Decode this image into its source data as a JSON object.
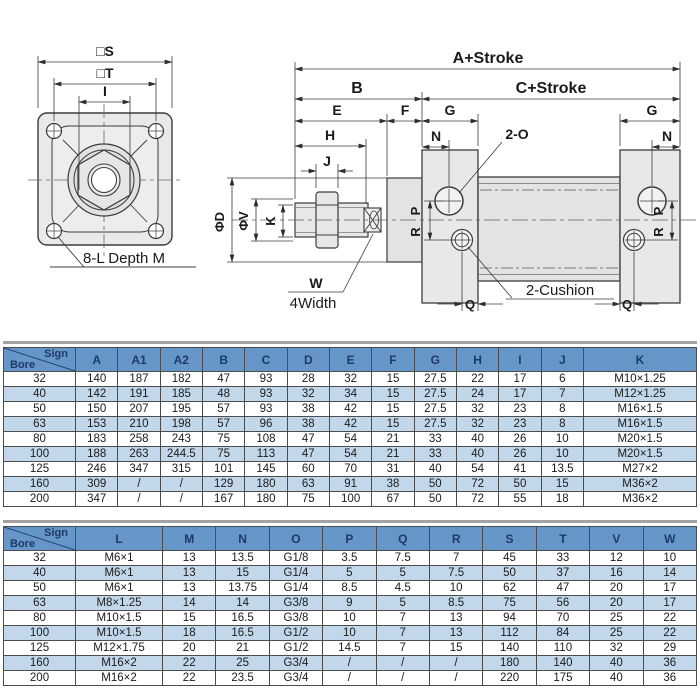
{
  "drawing": {
    "flange": {
      "dim_s": "□S",
      "dim_t": "□T",
      "dim_i": "I",
      "bolt_label": "8-L Depth M"
    },
    "cylinder": {
      "dim_a_stroke": "A+Stroke",
      "dim_b": "B",
      "dim_c_stroke": "C+Stroke",
      "dim_e": "E",
      "dim_f": "F",
      "dim_g_left": "G",
      "dim_g_right": "G",
      "dim_h": "H",
      "dim_n_left": "N",
      "dim_n_right": "N",
      "dim_j": "J",
      "port_label": "2-O",
      "dim_phi_d": "ΦD",
      "dim_phi_v": "ΦV",
      "dim_k": "K",
      "dim_p_left": "P",
      "dim_r_left": "R",
      "dim_p_right": "P",
      "dim_r_right": "R",
      "dim_w": "W",
      "width_label": "4Width",
      "dim_q_left": "Q",
      "dim_q_right": "Q",
      "cushion_label": "2-Cushion"
    }
  },
  "colors": {
    "table_header_bg": "#6695c8",
    "table_header_text": "#1f3a68",
    "table_row_alt": "#c2d8ea",
    "table_grid": "#4c4c4c",
    "metal_fill": "#e7e7e7",
    "line": "#3c3c3c"
  },
  "table1": {
    "corner": {
      "top": "Sign",
      "bottom": "Bore"
    },
    "columns": [
      "A",
      "A1",
      "A2",
      "B",
      "C",
      "D",
      "E",
      "F",
      "G",
      "H",
      "I",
      "J",
      "K"
    ],
    "rows": [
      [
        "32",
        "140",
        "187",
        "182",
        "47",
        "93",
        "28",
        "32",
        "15",
        "27.5",
        "22",
        "17",
        "6",
        "M10×1.25"
      ],
      [
        "40",
        "142",
        "191",
        "185",
        "48",
        "93",
        "32",
        "34",
        "15",
        "27.5",
        "24",
        "17",
        "7",
        "M12×1.25"
      ],
      [
        "50",
        "150",
        "207",
        "195",
        "57",
        "93",
        "38",
        "42",
        "15",
        "27.5",
        "32",
        "23",
        "8",
        "M16×1.5"
      ],
      [
        "63",
        "153",
        "210",
        "198",
        "57",
        "96",
        "38",
        "42",
        "15",
        "27.5",
        "32",
        "23",
        "8",
        "M16×1.5"
      ],
      [
        "80",
        "183",
        "258",
        "243",
        "75",
        "108",
        "47",
        "54",
        "21",
        "33",
        "40",
        "26",
        "10",
        "M20×1.5"
      ],
      [
        "100",
        "188",
        "263",
        "244.5",
        "75",
        "113",
        "47",
        "54",
        "21",
        "33",
        "40",
        "26",
        "10",
        "M20×1.5"
      ],
      [
        "125",
        "246",
        "347",
        "315",
        "101",
        "145",
        "60",
        "70",
        "31",
        "40",
        "54",
        "41",
        "13.5",
        "M27×2"
      ],
      [
        "160",
        "309",
        "/",
        "/",
        "129",
        "180",
        "63",
        "91",
        "38",
        "50",
        "72",
        "50",
        "15",
        "M36×2"
      ],
      [
        "200",
        "347",
        "/",
        "/",
        "167",
        "180",
        "75",
        "100",
        "67",
        "50",
        "72",
        "55",
        "18",
        "M36×2"
      ]
    ]
  },
  "table2": {
    "corner": {
      "top": "Sign",
      "bottom": "Bore"
    },
    "columns": [
      "L",
      "M",
      "N",
      "O",
      "P",
      "Q",
      "R",
      "S",
      "T",
      "V",
      "W"
    ],
    "rows": [
      [
        "32",
        "M6×1",
        "13",
        "13.5",
        "G1/8",
        "3.5",
        "7.5",
        "7",
        "45",
        "33",
        "12",
        "10"
      ],
      [
        "40",
        "M6×1",
        "13",
        "15",
        "G1/4",
        "5",
        "5",
        "7.5",
        "50",
        "37",
        "16",
        "14"
      ],
      [
        "50",
        "M6×1",
        "13",
        "13.75",
        "G1/4",
        "8.5",
        "4.5",
        "10",
        "62",
        "47",
        "20",
        "17"
      ],
      [
        "63",
        "M8×1.25",
        "14",
        "14",
        "G3/8",
        "9",
        "5",
        "8.5",
        "75",
        "56",
        "20",
        "17"
      ],
      [
        "80",
        "M10×1.5",
        "15",
        "16.5",
        "G3/8",
        "10",
        "7",
        "13",
        "94",
        "70",
        "25",
        "22"
      ],
      [
        "100",
        "M10×1.5",
        "18",
        "16.5",
        "G1/2",
        "10",
        "7",
        "13",
        "112",
        "84",
        "25",
        "22"
      ],
      [
        "125",
        "M12×1.75",
        "20",
        "21",
        "G1/2",
        "14.5",
        "7",
        "15",
        "140",
        "110",
        "32",
        "29"
      ],
      [
        "160",
        "M16×2",
        "22",
        "25",
        "G3/4",
        "/",
        "/",
        "/",
        "180",
        "140",
        "40",
        "36"
      ],
      [
        "200",
        "M16×2",
        "22",
        "23.5",
        "G3/4",
        "/",
        "/",
        "/",
        "220",
        "175",
        "40",
        "36"
      ]
    ]
  }
}
